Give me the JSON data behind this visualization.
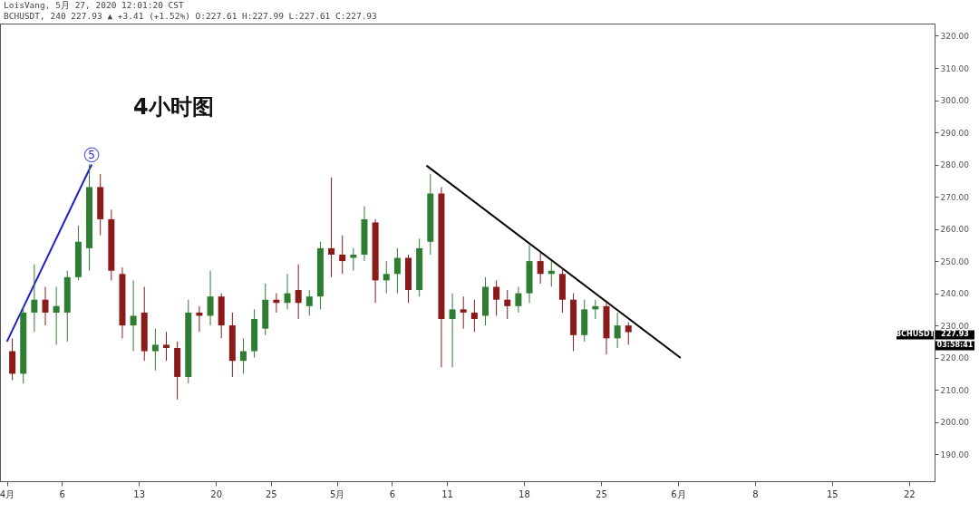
{
  "chart_data": {
    "type": "candlestick",
    "title": "4小时图",
    "x": [
      "2020-04-01T12:00",
      "2020-04-02T12:00",
      "2020-04-03T12:00",
      "2020-04-04T12:00",
      "2020-04-05T12:00",
      "2020-04-06T12:00",
      "2020-04-07T12:00",
      "2020-04-08T12:00",
      "2020-04-09T12:00",
      "2020-04-10T12:00",
      "2020-04-11T12:00",
      "2020-04-12T12:00",
      "2020-04-13T12:00",
      "2020-04-14T12:00",
      "2020-04-15T12:00",
      "2020-04-16T12:00",
      "2020-04-17T12:00",
      "2020-04-18T12:00",
      "2020-04-19T12:00",
      "2020-04-20T12:00",
      "2020-04-21T12:00",
      "2020-04-22T12:00",
      "2020-04-23T12:00",
      "2020-04-24T12:00",
      "2020-04-25T12:00",
      "2020-04-26T12:00",
      "2020-04-27T12:00",
      "2020-04-28T12:00",
      "2020-04-29T12:00",
      "2020-04-30T12:00",
      "2020-05-01T12:00",
      "2020-05-02T12:00",
      "2020-05-03T12:00",
      "2020-05-04T12:00",
      "2020-05-05T12:00",
      "2020-05-06T12:00",
      "2020-05-07T12:00",
      "2020-05-08T12:00",
      "2020-05-09T12:00",
      "2020-05-10T12:00",
      "2020-05-11T12:00",
      "2020-05-12T12:00",
      "2020-05-13T12:00",
      "2020-05-14T12:00",
      "2020-05-15T12:00",
      "2020-05-16T12:00",
      "2020-05-17T12:00",
      "2020-05-18T12:00",
      "2020-05-19T12:00",
      "2020-05-20T12:00",
      "2020-05-21T12:00",
      "2020-05-22T12:00",
      "2020-05-23T12:00",
      "2020-05-24T12:00",
      "2020-05-25T12:00",
      "2020-05-26T12:00",
      "2020-05-27T12:00"
    ],
    "ohlc": [
      [
        222,
        226,
        213,
        215
      ],
      [
        215,
        236,
        212,
        234
      ],
      [
        234,
        249,
        228,
        238
      ],
      [
        238,
        242,
        230,
        234
      ],
      [
        234,
        242,
        224,
        236
      ],
      [
        234,
        247,
        225,
        245
      ],
      [
        245,
        261,
        244,
        256
      ],
      [
        254,
        280,
        247,
        273
      ],
      [
        273,
        277,
        258,
        263
      ],
      [
        263,
        266,
        244,
        247
      ],
      [
        246,
        248,
        226,
        230
      ],
      [
        230,
        244,
        222,
        233
      ],
      [
        234,
        242,
        219,
        222
      ],
      [
        222,
        229,
        216,
        224
      ],
      [
        224,
        228,
        219,
        223
      ],
      [
        223,
        225,
        207,
        214
      ],
      [
        214,
        238,
        212,
        234
      ],
      [
        234,
        236,
        228,
        233
      ],
      [
        233,
        247,
        230,
        239
      ],
      [
        239,
        240,
        226,
        230
      ],
      [
        230,
        234,
        214,
        219
      ],
      [
        219,
        226,
        215,
        222
      ],
      [
        222,
        235,
        220,
        232
      ],
      [
        229,
        243,
        227,
        238
      ],
      [
        238,
        240,
        234,
        237
      ],
      [
        237,
        246,
        235,
        240
      ],
      [
        241,
        249,
        232,
        237
      ],
      [
        236,
        241,
        233,
        239
      ],
      [
        239,
        256,
        235,
        254
      ],
      [
        254,
        276,
        245,
        252
      ],
      [
        252,
        258,
        246,
        250
      ],
      [
        251,
        254,
        247,
        252
      ],
      [
        252,
        267,
        250,
        263
      ],
      [
        262,
        263,
        237,
        244
      ],
      [
        244,
        250,
        240,
        246
      ],
      [
        246,
        254,
        240,
        251
      ],
      [
        251,
        252,
        237,
        241
      ],
      [
        241,
        257,
        239,
        254
      ],
      [
        256,
        277,
        252,
        271
      ],
      [
        271,
        273,
        217,
        232
      ],
      [
        232,
        240,
        217,
        235
      ],
      [
        235,
        239,
        229,
        234
      ],
      [
        234,
        238,
        228,
        232
      ],
      [
        233,
        245,
        230,
        242
      ],
      [
        242,
        244,
        233,
        238
      ],
      [
        238,
        241,
        232,
        236
      ],
      [
        236,
        242,
        234,
        240
      ],
      [
        240,
        255,
        237,
        250
      ],
      [
        250,
        253,
        243,
        246
      ],
      [
        246,
        250,
        242,
        247
      ],
      [
        246,
        248,
        234,
        238
      ],
      [
        238,
        240,
        222,
        227
      ],
      [
        227,
        238,
        225,
        235
      ],
      [
        235,
        238,
        232,
        236
      ],
      [
        236,
        237,
        221,
        226
      ],
      [
        226,
        234,
        223,
        230
      ],
      [
        230,
        231,
        224,
        227.93
      ]
    ],
    "colors": [
      "#8b1a1a",
      "#2e7d32",
      "#2e7d32",
      "#8b1a1a",
      "#2e7d32",
      "#2e7d32",
      "#2e7d32",
      "#2e7d32",
      "#8b1a1a",
      "#8b1a1a",
      "#8b1a1a",
      "#2e7d32",
      "#8b1a1a",
      "#2e7d32",
      "#8b1a1a",
      "#8b1a1a",
      "#2e7d32",
      "#8b1a1a",
      "#2e7d32",
      "#8b1a1a",
      "#8b1a1a",
      "#2e7d32",
      "#2e7d32",
      "#2e7d32",
      "#8b1a1a",
      "#2e7d32",
      "#8b1a1a",
      "#2e7d32",
      "#2e7d32",
      "#8b1a1a",
      "#8b1a1a",
      "#2e7d32",
      "#2e7d32",
      "#8b1a1a",
      "#2e7d32",
      "#2e7d32",
      "#8b1a1a",
      "#2e7d32",
      "#2e7d32",
      "#8b1a1a",
      "#2e7d32",
      "#8b1a1a",
      "#8b1a1a",
      "#2e7d32",
      "#8b1a1a",
      "#8b1a1a",
      "#2e7d32",
      "#2e7d32",
      "#8b1a1a",
      "#2e7d32",
      "#8b1a1a",
      "#8b1a1a",
      "#2e7d32",
      "#2e7d32",
      "#8b1a1a",
      "#2e7d32",
      "#8b1a1a"
    ],
    "series": [
      {
        "type": "line",
        "color": "#1f1fd0",
        "x": [
          "2020-04-01T00:20",
          "2020-04-08T17:00"
        ],
        "values": [
          225,
          280
        ]
      },
      {
        "type": "line",
        "color": "#000000",
        "x": [
          "2020-05-09T03:20",
          "2020-06-01T06:00"
        ],
        "values": [
          279.7,
          219.9
        ]
      }
    ],
    "xlim": [
      "2020-03-31T19:00",
      "2020-06-23T22:00"
    ],
    "xticks": [
      {
        "value": "2020-04-01",
        "label": "4月"
      },
      {
        "value": "2020-04-06",
        "label": "6"
      },
      {
        "value": "2020-04-13",
        "label": "13"
      },
      {
        "value": "2020-04-20",
        "label": "20"
      },
      {
        "value": "2020-04-25",
        "label": "25"
      },
      {
        "value": "2020-05-01",
        "label": "5月"
      },
      {
        "value": "2020-05-06",
        "label": "6"
      },
      {
        "value": "2020-05-11",
        "label": "11"
      },
      {
        "value": "2020-05-18",
        "label": "18"
      },
      {
        "value": "2020-05-25",
        "label": "25"
      },
      {
        "value": "2020-06-01",
        "label": "6月"
      },
      {
        "value": "2020-06-08",
        "label": "8"
      },
      {
        "value": "2020-06-15",
        "label": "15"
      },
      {
        "value": "2020-06-22",
        "label": "22"
      }
    ],
    "ylim": [
      181.6,
      323.8
    ],
    "yticks": [
      {
        "value": 190,
        "label": "190.00"
      },
      {
        "value": 200,
        "label": "200.00"
      },
      {
        "value": 210,
        "label": "210.00"
      },
      {
        "value": 220,
        "label": "220.00"
      },
      {
        "value": 230,
        "label": "230.00"
      },
      {
        "value": 240,
        "label": "240.00"
      },
      {
        "value": 250,
        "label": "250.00"
      },
      {
        "value": 260,
        "label": "260.00"
      },
      {
        "value": 270,
        "label": "270.00"
      },
      {
        "value": 280,
        "label": "280.00"
      },
      {
        "value": 290,
        "label": "290.00"
      },
      {
        "value": 300,
        "label": "300.00"
      },
      {
        "value": 310,
        "label": "310.00"
      },
      {
        "value": 320,
        "label": "320.00"
      }
    ],
    "annotations": [
      "LoisVang, 5月 27, 2020 12:01:20 CST",
      "BCHUSDT, 240 227.93 ▲ +3.41 (+1.52%) O:227.61 H:227.99 L:227.61 C:227.93",
      {
        "text": "5",
        "x": "2020-04-08T17:00",
        "y": 283
      },
      "BCHUSDT",
      "227.93",
      "03:58:41"
    ]
  }
}
